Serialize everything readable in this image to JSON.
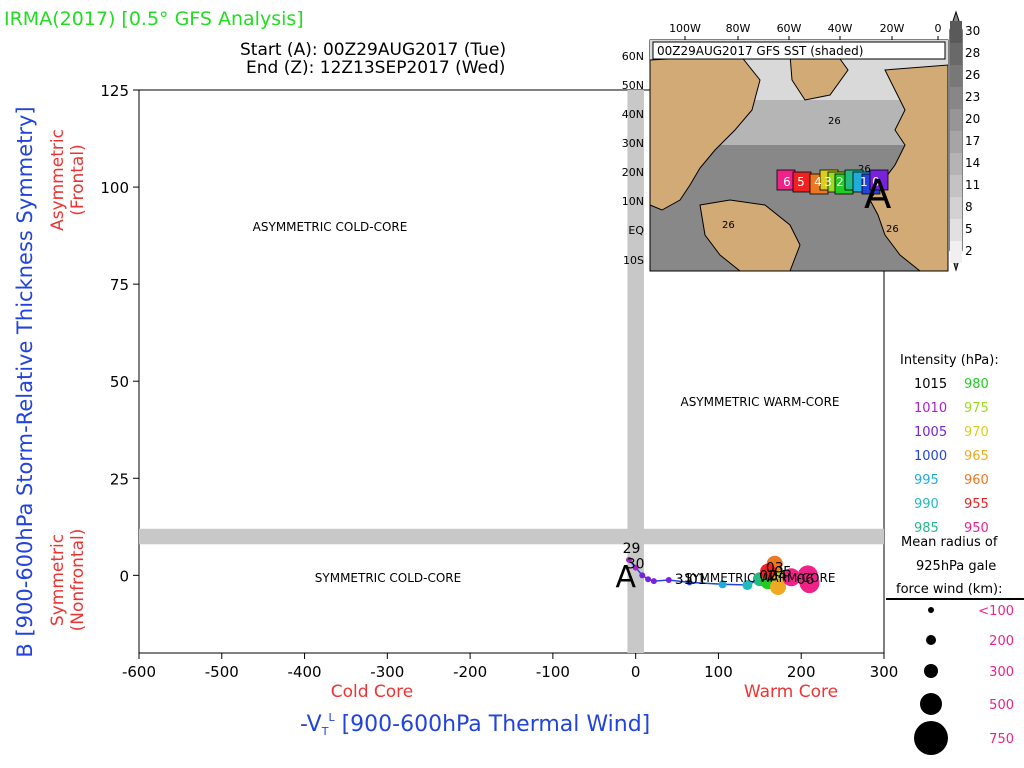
{
  "header": {
    "title": "IRMA(2017) [0.5° GFS Analysis]",
    "start": "Start (A): 00Z29AUG2017 (Tue)",
    "end": "End (Z): 12Z13SEP2017 (Wed)"
  },
  "colors": {
    "title": "#22dd22",
    "ylabel": "#2244dd",
    "xlabel": "#2244dd",
    "side_red": "#ee3333",
    "shade": "#c8c8c8"
  },
  "axes": {
    "ylabel": "B [900-600hPa Storm-Relative Thickness Symmetry]",
    "xlabel_prefix": "-V",
    "xlabel_sub": "T",
    "xlabel_sup": "L",
    "xlabel_suffix": " [900-600hPa Thermal Wind]",
    "y_top_label_1": "Asymmetric",
    "y_top_label_2": "(Frontal)",
    "y_bottom_label_1": "Symmetric",
    "y_bottom_label_2": "(Nonfrontal)",
    "x_left_label": "Cold Core",
    "x_right_label": "Warm Core"
  },
  "regions": {
    "asym_cold": "ASYMMETRIC COLD-CORE",
    "asym_warm": "ASYMMETRIC WARM-CORE",
    "sym_cold": "SYMMETRIC COLD-CORE",
    "sym_warm": "SYMMETRIC WARM-CORE"
  },
  "map": {
    "caption": "00Z29AUG2017 GFS SST (shaded)",
    "lon_labels": [
      "100W",
      "80W",
      "60W",
      "40W",
      "20W",
      "0"
    ],
    "lat_labels": [
      "60N",
      "50N",
      "40N",
      "30N",
      "20N",
      "10N",
      "EQ",
      "10S"
    ],
    "sst_labels": [
      "26",
      "26",
      "26",
      "26"
    ],
    "colorbar_labels": [
      "30",
      "28",
      "26",
      "23",
      "20",
      "17",
      "14",
      "11",
      "8",
      "5",
      "2"
    ],
    "track_labels": [
      "6",
      "5",
      "4",
      "3",
      "2",
      "1",
      "0"
    ],
    "start_marker": "A"
  },
  "legend": {
    "intensity_title": "Intensity (hPa):",
    "intensity": [
      {
        "left": "1015",
        "left_color": "#000000",
        "right": "980",
        "right_color": "#22cc22"
      },
      {
        "left": "1010",
        "left_color": "#aa22cc",
        "right": "975",
        "right_color": "#99dd22"
      },
      {
        "left": "1005",
        "left_color": "#7722dd",
        "right": "970",
        "right_color": "#ddcc22"
      },
      {
        "left": "1000",
        "left_color": "#2244dd",
        "right": "965",
        "right_color": "#eeaa22"
      },
      {
        "left": "995",
        "left_color": "#22aadd",
        "right": "960",
        "right_color": "#ee7722"
      },
      {
        "left": "990",
        "left_color": "#22bbbb",
        "right": "955",
        "right_color": "#ee2222"
      },
      {
        "left": "985",
        "left_color": "#22bb88",
        "right": "950",
        "right_color": "#ee2288"
      }
    ],
    "radius_title_1": "Mean radius of",
    "radius_title_2": "925hPa gale",
    "radius_title_3": "force wind (km):",
    "radius": [
      "<100",
      "200",
      "300",
      "500",
      "750"
    ],
    "radius_color": "#ee2288"
  },
  "chart_data": {
    "type": "scatter",
    "title": "IRMA(2017) [0.5° GFS Analysis]",
    "xlabel": "-VTL [900-600hPa Thermal Wind]",
    "ylabel": "B [900-600hPa Storm-Relative Thickness Symmetry]",
    "xlim": [
      -600,
      300
    ],
    "ylim": [
      -20,
      125
    ],
    "xticks": [
      -600,
      -500,
      -400,
      -300,
      -200,
      -100,
      0,
      100,
      200,
      300
    ],
    "yticks": [
      0,
      25,
      50,
      75,
      100,
      125
    ],
    "shaded_x_band": [
      -10,
      10
    ],
    "shaded_y_band": [
      8,
      12
    ],
    "start_marker": "A",
    "track_labels": [
      "29",
      "30",
      "31",
      "01",
      "02",
      "03",
      "04",
      "05",
      "06"
    ],
    "track": [
      {
        "x": -8,
        "y": 4,
        "p": 1010,
        "color": "#aa22cc",
        "r": 3
      },
      {
        "x": 0,
        "y": 2,
        "p": 1010,
        "color": "#aa22cc",
        "r": 3
      },
      {
        "x": 8,
        "y": 0,
        "p": 1005,
        "color": "#7722dd",
        "r": 3
      },
      {
        "x": 15,
        "y": -1,
        "p": 1005,
        "color": "#7722dd",
        "r": 3
      },
      {
        "x": 22,
        "y": -1.5,
        "p": 1005,
        "color": "#7722dd",
        "r": 3
      },
      {
        "x": 40,
        "y": -1.2,
        "p": 1005,
        "color": "#7722dd",
        "r": 3
      },
      {
        "x": 65,
        "y": -1.8,
        "p": 1000,
        "color": "#2244dd",
        "r": 3
      },
      {
        "x": 105,
        "y": -2.3,
        "p": 995,
        "color": "#22aadd",
        "r": 4
      },
      {
        "x": 135,
        "y": -2.5,
        "p": 990,
        "color": "#22bbbb",
        "r": 5
      },
      {
        "x": 150,
        "y": -1,
        "p": 985,
        "color": "#22bb88",
        "r": 7
      },
      {
        "x": 160,
        "y": -1.5,
        "p": 980,
        "color": "#22cc22",
        "r": 8
      },
      {
        "x": 170,
        "y": 0,
        "p": 975,
        "color": "#99dd22",
        "r": 8
      },
      {
        "x": 165,
        "y": 1,
        "p": 970,
        "color": "#ddcc22",
        "r": 9
      },
      {
        "x": 172,
        "y": -3,
        "p": 965,
        "color": "#eeaa22",
        "r": 8
      },
      {
        "x": 168,
        "y": 3,
        "p": 960,
        "color": "#ee7722",
        "r": 8
      },
      {
        "x": 160,
        "y": 1,
        "p": 955,
        "color": "#ee2222",
        "r": 8
      },
      {
        "x": 188,
        "y": -0.5,
        "p": 950,
        "color": "#ee2288",
        "r": 9
      },
      {
        "x": 208,
        "y": 0,
        "p": 950,
        "color": "#ee2288",
        "r": 10
      },
      {
        "x": 210,
        "y": -2,
        "p": 950,
        "color": "#ee2288",
        "r": 10
      }
    ]
  }
}
